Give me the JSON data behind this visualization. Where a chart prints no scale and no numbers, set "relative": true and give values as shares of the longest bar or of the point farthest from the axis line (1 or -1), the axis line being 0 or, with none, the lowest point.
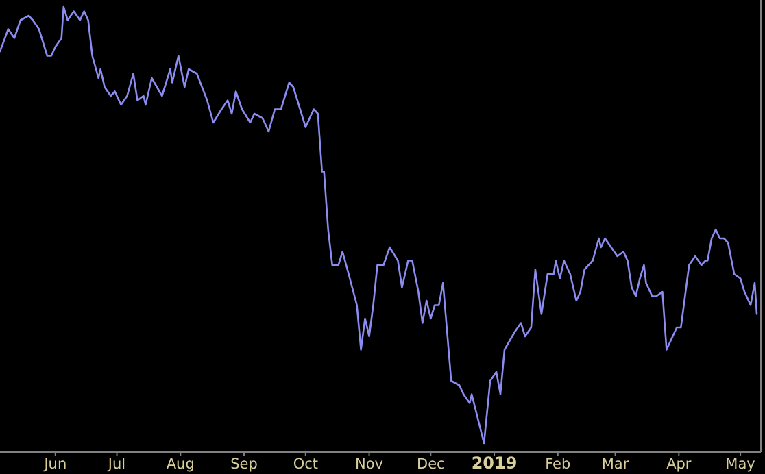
{
  "chart_data": {
    "type": "line",
    "relative": true,
    "xlim": [
      "2018-05-05",
      "2019-05-11"
    ],
    "xticks": [
      {
        "value": "2018-06-01",
        "label": "Jun"
      },
      {
        "value": "2018-07-01",
        "label": "Jul"
      },
      {
        "value": "2018-08-01",
        "label": "Aug"
      },
      {
        "value": "2018-09-01",
        "label": "Sep"
      },
      {
        "value": "2018-10-01",
        "label": "Oct"
      },
      {
        "value": "2018-11-01",
        "label": "Nov"
      },
      {
        "value": "2018-12-01",
        "label": "Dec"
      },
      {
        "value": "2019-01-01",
        "label": "2019"
      },
      {
        "value": "2019-02-01",
        "label": "Feb"
      },
      {
        "value": "2019-03-01",
        "label": "Mar"
      },
      {
        "value": "2019-04-01",
        "label": "Apr"
      },
      {
        "value": "2019-05-01",
        "label": "May"
      }
    ],
    "x": [
      "2018-05-05",
      "2018-05-09",
      "2018-05-12",
      "2018-05-15",
      "2018-05-19",
      "2018-05-21",
      "2018-05-24",
      "2018-05-28",
      "2018-05-30",
      "2018-06-01",
      "2018-06-04",
      "2018-06-05",
      "2018-06-07",
      "2018-06-10",
      "2018-06-13",
      "2018-06-15",
      "2018-06-17",
      "2018-06-19",
      "2018-06-22",
      "2018-06-23",
      "2018-06-25",
      "2018-06-28",
      "2018-06-30",
      "2018-07-03",
      "2018-07-06",
      "2018-07-09",
      "2018-07-11",
      "2018-07-14",
      "2018-07-15",
      "2018-07-18",
      "2018-07-23",
      "2018-07-27",
      "2018-07-28",
      "2018-07-31",
      "2018-08-03",
      "2018-08-05",
      "2018-08-09",
      "2018-08-14",
      "2018-08-17",
      "2018-08-21",
      "2018-08-24",
      "2018-08-26",
      "2018-08-28",
      "2018-08-31",
      "2018-09-04",
      "2018-09-06",
      "2018-09-10",
      "2018-09-13",
      "2018-09-16",
      "2018-09-19",
      "2018-09-23",
      "2018-09-25",
      "2018-10-01",
      "2018-10-05",
      "2018-10-07",
      "2018-10-09",
      "2018-10-10",
      "2018-10-12",
      "2018-10-14",
      "2018-10-17",
      "2018-10-19",
      "2018-10-22",
      "2018-10-26",
      "2018-10-28",
      "2018-10-30",
      "2018-11-01",
      "2018-11-03",
      "2018-11-05",
      "2018-11-08",
      "2018-11-11",
      "2018-11-15",
      "2018-11-17",
      "2018-11-20",
      "2018-11-22",
      "2018-11-25",
      "2018-11-27",
      "2018-11-29",
      "2018-12-01",
      "2018-12-03",
      "2018-12-05",
      "2018-12-07",
      "2018-12-11",
      "2018-12-15",
      "2018-12-17",
      "2018-12-20",
      "2018-12-21",
      "2018-12-27",
      "2018-12-30",
      "2019-01-02",
      "2019-01-04",
      "2019-01-06",
      "2019-01-11",
      "2019-01-14",
      "2019-01-16",
      "2019-01-19",
      "2019-01-21",
      "2019-01-24",
      "2019-01-27",
      "2019-01-30",
      "2019-01-31",
      "2019-02-02",
      "2019-02-04",
      "2019-02-07",
      "2019-02-10",
      "2019-02-12",
      "2019-02-14",
      "2019-02-18",
      "2019-02-21",
      "2019-02-22",
      "2019-02-24",
      "2019-02-27",
      "2019-03-02",
      "2019-03-05",
      "2019-03-07",
      "2019-03-09",
      "2019-03-11",
      "2019-03-13",
      "2019-03-15",
      "2019-03-16",
      "2019-03-19",
      "2019-03-21",
      "2019-03-24",
      "2019-03-26",
      "2019-03-31",
      "2019-04-02",
      "2019-04-04",
      "2019-04-06",
      "2019-04-09",
      "2019-04-12",
      "2019-04-14",
      "2019-04-15",
      "2019-04-17",
      "2019-04-19",
      "2019-04-21",
      "2019-04-23",
      "2019-04-25",
      "2019-04-28",
      "2019-05-01",
      "2019-05-03",
      "2019-05-06",
      "2019-05-08",
      "2019-05-09"
    ],
    "series": [
      {
        "color": "#8c8cf0",
        "values": [
          0.9,
          0.95,
          0.93,
          0.97,
          0.98,
          0.97,
          0.95,
          0.89,
          0.89,
          0.91,
          0.93,
          1.0,
          0.97,
          0.99,
          0.97,
          0.99,
          0.97,
          0.89,
          0.84,
          0.86,
          0.82,
          0.8,
          0.81,
          0.78,
          0.8,
          0.85,
          0.79,
          0.8,
          0.78,
          0.84,
          0.8,
          0.86,
          0.83,
          0.89,
          0.82,
          0.86,
          0.85,
          0.79,
          0.74,
          0.77,
          0.79,
          0.76,
          0.81,
          0.77,
          0.74,
          0.76,
          0.75,
          0.72,
          0.77,
          0.77,
          0.83,
          0.82,
          0.73,
          0.77,
          0.76,
          0.63,
          0.63,
          0.5,
          0.42,
          0.42,
          0.45,
          0.4,
          0.33,
          0.23,
          0.3,
          0.26,
          0.33,
          0.42,
          0.42,
          0.46,
          0.43,
          0.37,
          0.43,
          0.43,
          0.36,
          0.29,
          0.34,
          0.3,
          0.33,
          0.33,
          0.38,
          0.16,
          0.15,
          0.13,
          0.11,
          0.13,
          0.02,
          0.16,
          0.18,
          0.13,
          0.23,
          0.27,
          0.29,
          0.26,
          0.28,
          0.41,
          0.31,
          0.4,
          0.4,
          0.43,
          0.39,
          0.43,
          0.4,
          0.34,
          0.36,
          0.41,
          0.43,
          0.48,
          0.46,
          0.48,
          0.46,
          0.44,
          0.45,
          0.43,
          0.37,
          0.35,
          0.39,
          0.42,
          0.38,
          0.35,
          0.35,
          0.36,
          0.23,
          0.28,
          0.28,
          0.35,
          0.42,
          0.44,
          0.42,
          0.43,
          0.43,
          0.48,
          0.5,
          0.48,
          0.48,
          0.47,
          0.4,
          0.39,
          0.36,
          0.33,
          0.38,
          0.31
        ]
      }
    ]
  }
}
